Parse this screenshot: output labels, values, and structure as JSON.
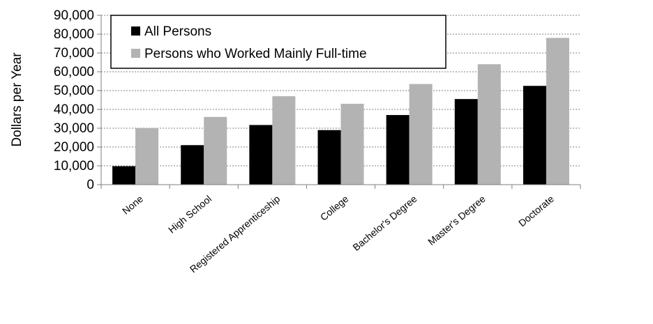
{
  "chart_data": {
    "type": "bar",
    "title": "",
    "xlabel": "",
    "ylabel": "Dollars per Year",
    "ylim": [
      0,
      90000
    ],
    "yticks": [
      0,
      10000,
      20000,
      30000,
      40000,
      50000,
      60000,
      70000,
      80000,
      90000
    ],
    "ytick_labels": [
      "0",
      "10,000",
      "20,000",
      "30,000",
      "40,000",
      "50,000",
      "60,000",
      "70,000",
      "80,000",
      "90,000"
    ],
    "grid": "horizontal-dotted",
    "legend_position": "top-left",
    "categories": [
      "None",
      "High School",
      "Registered Apprenticeship",
      "College",
      "Bachelor's Degree",
      "Master's Degree",
      "Doctorate"
    ],
    "series": [
      {
        "name": "All Persons",
        "color": "#000000",
        "values": [
          9800,
          21000,
          31700,
          29000,
          37000,
          45500,
          52500
        ]
      },
      {
        "name": "Persons who Worked Mainly Full-time",
        "color": "#b3b3b3",
        "values": [
          30000,
          36000,
          47000,
          43000,
          53500,
          64000,
          78000
        ]
      }
    ]
  }
}
